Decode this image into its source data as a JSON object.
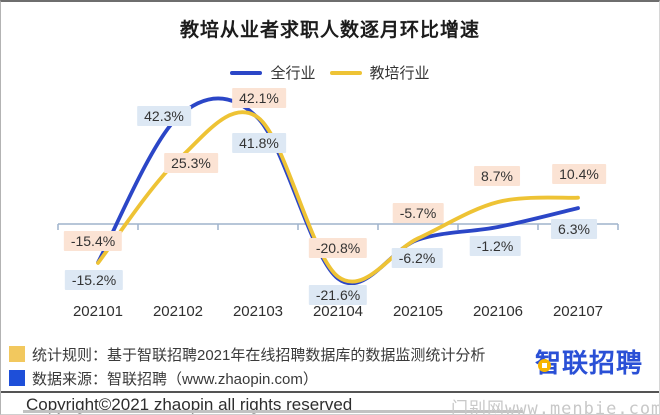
{
  "title": "教培从业者求职人数逐月环比增速",
  "chart_data": {
    "type": "line",
    "categories": [
      "202101",
      "202102",
      "202103",
      "202104",
      "202105",
      "202106",
      "202107"
    ],
    "series": [
      {
        "name": "全行业",
        "color": "#2b46c7",
        "label_bg": "#dde8f4",
        "values": [
          -15.2,
          42.3,
          41.8,
          -21.6,
          -6.2,
          -1.2,
          6.3
        ]
      },
      {
        "name": "教培行业",
        "color": "#eec335",
        "label_bg": "#fbe3d4",
        "values": [
          -15.4,
          25.3,
          42.1,
          -20.8,
          -5.7,
          8.7,
          10.4
        ]
      }
    ],
    "unit": "%",
    "title": "教培从业者求职人数逐月环比增速",
    "xlabel": "",
    "ylabel": "",
    "baseline": 0,
    "grid": false,
    "legend_position": "top",
    "data_labels": true
  },
  "notes": [
    {
      "bullet_color": "#f2c85e",
      "text": "统计规则：基于智联招聘2021年在线招聘数据库的数据监测统计分析"
    },
    {
      "bullet_color": "#1e4fd9",
      "text": "数据来源：智联招聘（www.zhaopin.com）"
    }
  ],
  "logo": {
    "text": "智联招聘"
  },
  "footer": {
    "copyright": "Copyright©2021 zhaopin all rights reserved"
  },
  "watermark": "门别网www.menbie.com"
}
